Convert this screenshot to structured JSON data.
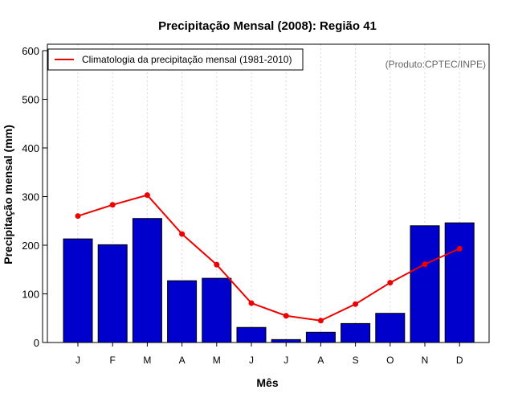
{
  "chart_data": {
    "type": "bar",
    "title": "Precipitação Mensal (2008): Região 41",
    "xlabel": "Mês",
    "ylabel": "Precipitação mensal (mm)",
    "categories": [
      "J",
      "F",
      "M",
      "A",
      "M",
      "J",
      "J",
      "A",
      "S",
      "O",
      "N",
      "D"
    ],
    "ylim": [
      0,
      600
    ],
    "yticks": [
      0,
      100,
      200,
      300,
      400,
      500,
      600
    ],
    "grid": "vertical dotted",
    "legend_position": "top-left",
    "credit": "(Produto:CPTEC/INPE)",
    "series": [
      {
        "name": "Precipitação mensal 2008",
        "type": "bar",
        "color": "#0000cc",
        "values": [
          213,
          201,
          255,
          127,
          132,
          31,
          6,
          21,
          39,
          60,
          240,
          246
        ]
      },
      {
        "name": "Climatologia da precipitação mensal (1981-2010)",
        "type": "line",
        "color": "#ee0000",
        "values": [
          260,
          283,
          303,
          223,
          160,
          81,
          55,
          45,
          79,
          123,
          161,
          193
        ]
      }
    ]
  }
}
